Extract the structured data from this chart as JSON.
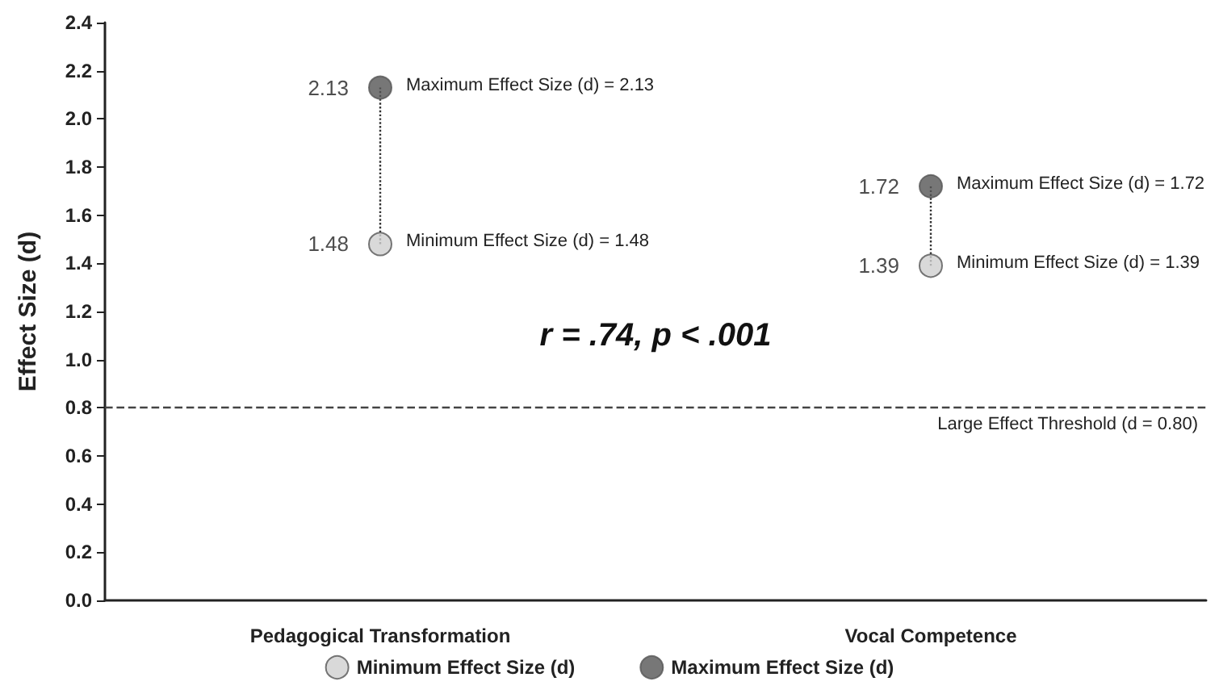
{
  "chart_data": {
    "type": "scatter",
    "ylabel": "Effect Size (d)",
    "categories": [
      "Pedagogical Transformation",
      "Vocal Competence"
    ],
    "series": [
      {
        "name": "Minimum Effect Size (d)",
        "color": "#d0d0d0",
        "values": [
          1.48,
          1.39
        ]
      },
      {
        "name": "Maximum Effect Size (d)",
        "color": "#555555",
        "values": [
          2.13,
          1.72
        ]
      }
    ],
    "ylim": [
      0,
      2.4
    ],
    "yticks": [
      {
        "value": 0,
        "label": "0.0"
      },
      0.2,
      0.4,
      0.6,
      0.8,
      {
        "value": 1,
        "label": "1.0"
      },
      1.2,
      1.4,
      1.6,
      1.8,
      {
        "value": 2,
        "label": "2.0"
      },
      2.2,
      2.4
    ],
    "data_labels": true,
    "marker": "circle",
    "legend": "bottom",
    "grid": false,
    "ref_lines": [
      {
        "axis": "y",
        "value": 0.8,
        "label": "Large Effect Threshold (d = 0.80)",
        "line_style": "dashed",
        "color": "#444444"
      }
    ],
    "annotations": [
      {
        "text": "Maximum Effect Size (d) = 2.13",
        "x": "Pedagogical Transformation",
        "y": 2.13
      },
      {
        "text": "Minimum Effect Size (d) = 1.48",
        "x": "Pedagogical Transformation",
        "y": 1.48
      },
      {
        "text": "Maximum Effect Size (d) = 1.72",
        "x": "Vocal Competence",
        "y": 1.72
      },
      {
        "text": "Minimum Effect Size (d) = 1.39",
        "x": "Vocal Competence",
        "y": 1.39
      },
      "r = .74, p < .001"
    ]
  }
}
